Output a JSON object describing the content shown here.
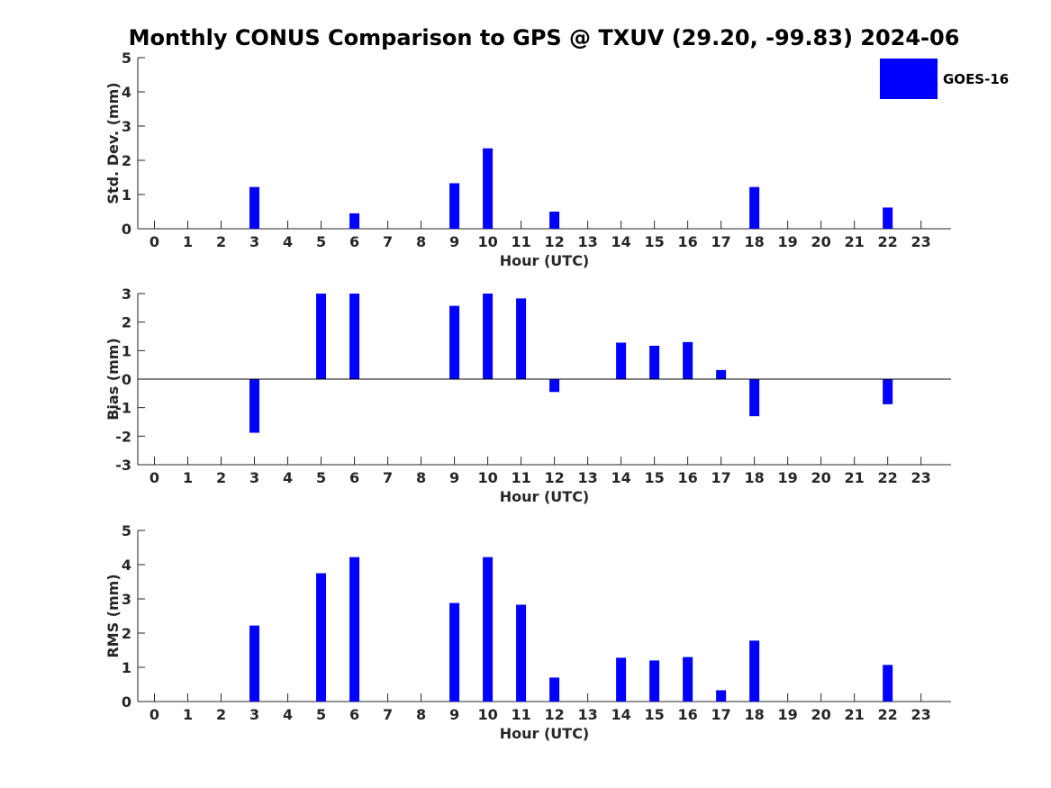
{
  "title": "Monthly CONUS Comparison to GPS @ TXUV (29.20, -99.83) 2024-06",
  "legend": {
    "label": "GOES-16",
    "color": "#0000ff",
    "position": "top-right"
  },
  "colors": {
    "bar": "#0000ff",
    "axis": "#262626"
  },
  "chart_data": [
    {
      "type": "bar",
      "title": "",
      "xlabel": "Hour (UTC)",
      "ylabel": "Std. Dev. (mm)",
      "categories": [
        "0",
        "1",
        "2",
        "3",
        "4",
        "5",
        "6",
        "7",
        "8",
        "9",
        "10",
        "11",
        "12",
        "13",
        "14",
        "15",
        "16",
        "17",
        "18",
        "19",
        "20",
        "21",
        "22",
        "23"
      ],
      "xlim": [
        -0.5,
        23.9
      ],
      "ylim": [
        0,
        5
      ],
      "yticks": [
        "0",
        "1",
        "2",
        "3",
        "4",
        "5"
      ],
      "grid": false,
      "zero_line": false,
      "series": [
        {
          "name": "GOES-16",
          "values": [
            null,
            null,
            null,
            1.22,
            null,
            0,
            0.45,
            null,
            null,
            1.33,
            2.35,
            0,
            0.5,
            null,
            0,
            0,
            0,
            0,
            1.22,
            null,
            null,
            null,
            0.62,
            null
          ]
        }
      ]
    },
    {
      "type": "bar",
      "title": "",
      "xlabel": "Hour (UTC)",
      "ylabel": "Bias (mm)",
      "categories": [
        "0",
        "1",
        "2",
        "3",
        "4",
        "5",
        "6",
        "7",
        "8",
        "9",
        "10",
        "11",
        "12",
        "13",
        "14",
        "15",
        "16",
        "17",
        "18",
        "19",
        "20",
        "21",
        "22",
        "23"
      ],
      "xlim": [
        -0.5,
        23.9
      ],
      "ylim": [
        -3,
        3
      ],
      "yticks": [
        "-3",
        "-2",
        "-1",
        "0",
        "1",
        "2",
        "3"
      ],
      "grid": false,
      "zero_line": true,
      "series": [
        {
          "name": "GOES-16",
          "values": [
            null,
            null,
            null,
            -1.88,
            null,
            3.0,
            3.0,
            null,
            null,
            2.57,
            3.0,
            2.83,
            -0.45,
            null,
            1.28,
            1.17,
            1.3,
            0.32,
            -1.3,
            null,
            null,
            null,
            -0.88,
            null
          ]
        }
      ]
    },
    {
      "type": "bar",
      "title": "",
      "xlabel": "Hour (UTC)",
      "ylabel": "RMS (mm)",
      "categories": [
        "0",
        "1",
        "2",
        "3",
        "4",
        "5",
        "6",
        "7",
        "8",
        "9",
        "10",
        "11",
        "12",
        "13",
        "14",
        "15",
        "16",
        "17",
        "18",
        "19",
        "20",
        "21",
        "22",
        "23"
      ],
      "xlim": [
        -0.5,
        23.9
      ],
      "ylim": [
        0,
        5
      ],
      "yticks": [
        "0",
        "1",
        "2",
        "3",
        "4",
        "5"
      ],
      "grid": false,
      "zero_line": false,
      "series": [
        {
          "name": "GOES-16",
          "values": [
            null,
            null,
            null,
            2.22,
            null,
            3.75,
            4.22,
            null,
            null,
            2.88,
            4.22,
            2.83,
            0.7,
            null,
            1.28,
            1.2,
            1.3,
            0.33,
            1.78,
            null,
            null,
            null,
            1.07,
            null
          ]
        }
      ]
    }
  ]
}
